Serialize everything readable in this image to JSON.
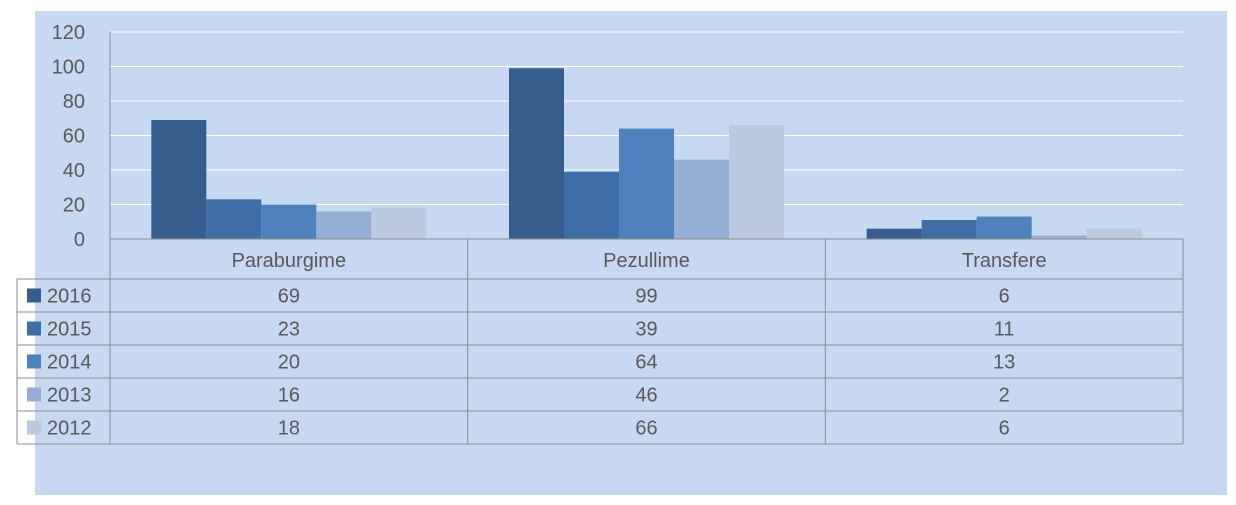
{
  "chart_data": {
    "type": "bar",
    "title": "",
    "xlabel": "",
    "ylabel": "",
    "categories": [
      "Paraburgime",
      "Pezullime",
      "Transfere"
    ],
    "series": [
      {
        "name": "2016",
        "values": [
          69,
          99,
          6
        ],
        "color": "#375d8f"
      },
      {
        "name": "2015",
        "values": [
          23,
          39,
          11
        ],
        "color": "#3f6da5"
      },
      {
        "name": "2014",
        "values": [
          20,
          64,
          13
        ],
        "color": "#4f81bd"
      },
      {
        "name": "2013",
        "values": [
          16,
          46,
          2
        ],
        "color": "#95aed4"
      },
      {
        "name": "2012",
        "values": [
          18,
          66,
          6
        ],
        "color": "#bccae0"
      }
    ],
    "y_ticks": [
      "0",
      "20",
      "40",
      "60",
      "80",
      "100",
      "120"
    ],
    "ylim": [
      0,
      120
    ],
    "grid": true,
    "legend": "data-table-left",
    "data_table": true,
    "background": "#c6d9f1",
    "gridline_color": "#ffffff",
    "table_line_color": "#8c8c8c"
  }
}
